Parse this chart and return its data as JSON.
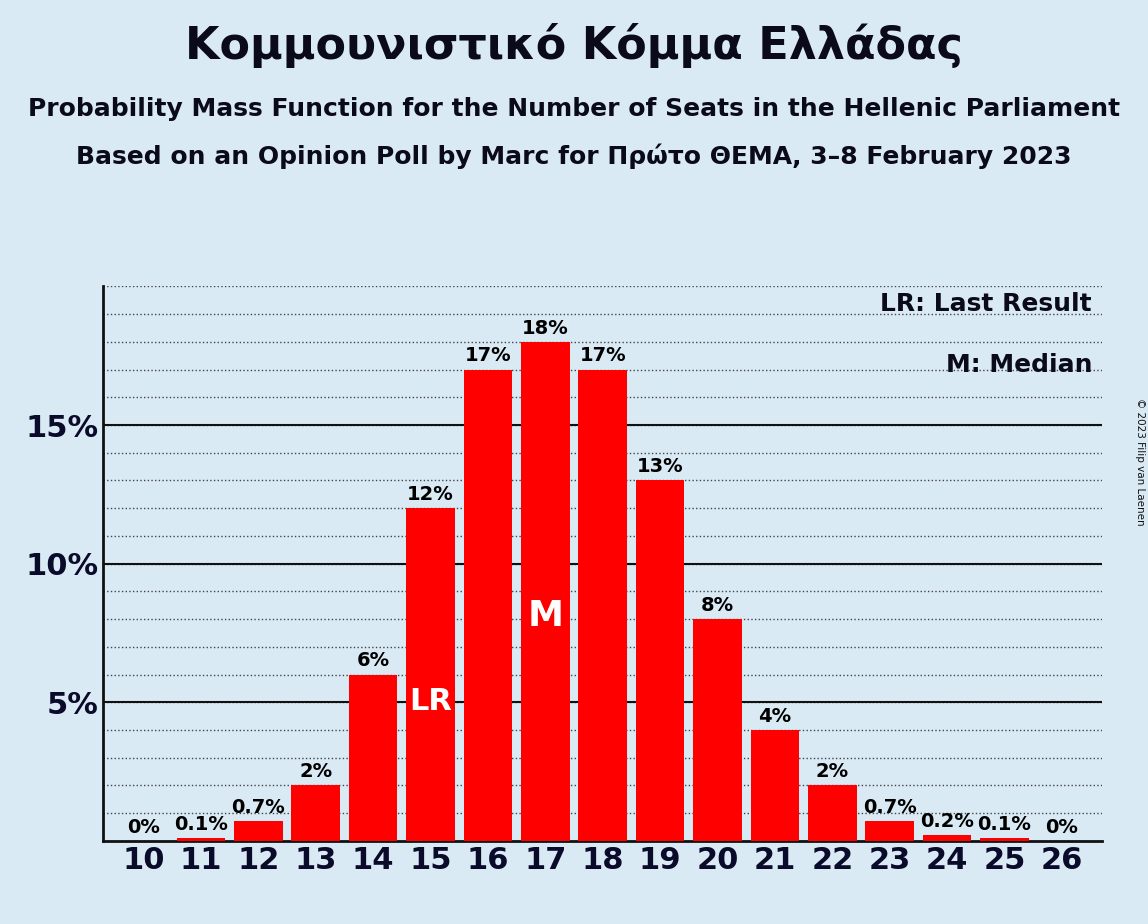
{
  "title": "Κομμουνιστικό Κόμμα Ελλάδας",
  "subtitle1": "Probability Mass Function for the Number of Seats in the Hellenic Parliament",
  "subtitle2": "Based on an Opinion Poll by Marc for Πρώτο ΘΕΜΑ, 3–8 February 2023",
  "copyright": "© 2023 Filip van Laenen",
  "categories": [
    10,
    11,
    12,
    13,
    14,
    15,
    16,
    17,
    18,
    19,
    20,
    21,
    22,
    23,
    24,
    25,
    26
  ],
  "values": [
    0.0,
    0.1,
    0.7,
    2.0,
    6.0,
    12.0,
    17.0,
    18.0,
    17.0,
    13.0,
    8.0,
    4.0,
    2.0,
    0.7,
    0.2,
    0.1,
    0.0
  ],
  "labels": [
    "0%",
    "0.1%",
    "0.7%",
    "2%",
    "6%",
    "12%",
    "17%",
    "18%",
    "17%",
    "13%",
    "8%",
    "4%",
    "2%",
    "0.7%",
    "0.2%",
    "0.1%",
    "0%"
  ],
  "bar_color": "#ff0000",
  "background_color": "#daeaf5",
  "lr_bar": 15,
  "median_bar": 17,
  "lr_legend": "LR: Last Result",
  "median_legend": "M: Median",
  "major_yticks": [
    5,
    10,
    15
  ],
  "minor_yticks_step": 1,
  "ylim": [
    0,
    20.0
  ],
  "title_fontsize": 32,
  "subtitle_fontsize": 18,
  "ylabel_fontsize": 22,
  "xlabel_fontsize": 22,
  "bar_label_fontsize": 14,
  "legend_fontsize": 18,
  "lr_fontsize": 22,
  "median_fontsize": 26
}
